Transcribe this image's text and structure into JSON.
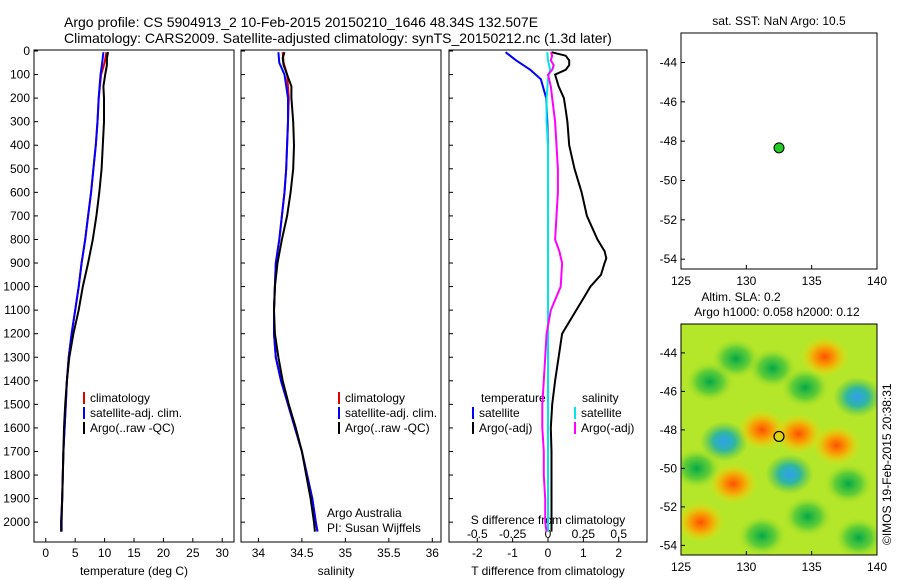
{
  "header": {
    "line1": "Argo profile: CS 5904913_2 10-Feb-2015 20150210_1646 48.34S 132.507E",
    "line2": "Climatology: CARS2009. Satellite-adjusted climatology: synTS_20150212.nc (1.3d later)"
  },
  "credits": {
    "org": "Argo Australia",
    "pi": "PI: Susan Wijffels",
    "stamp": "©IMOS 19-Feb-2015 20:38:31"
  },
  "colors": {
    "climatology": "#e00000",
    "satellite": "#0000ff",
    "argo": "#000000",
    "sal_satellite": "#00e5e5",
    "sal_argo": "#ff00ff",
    "marker": "#22cc22"
  },
  "chart_data": [
    {
      "type": "line",
      "name": "temperature-profile",
      "xlabel": "temperature (deg C)",
      "ylabel": "",
      "xlim": [
        -2,
        32
      ],
      "ylim": [
        2080,
        0
      ],
      "xticks": [
        0,
        5,
        10,
        15,
        20,
        25,
        30
      ],
      "yticks": [
        0,
        100,
        200,
        300,
        400,
        500,
        600,
        700,
        800,
        900,
        1000,
        1100,
        1200,
        1300,
        1400,
        1500,
        1600,
        1700,
        1800,
        1900,
        2000
      ],
      "legend": [
        "climatology",
        "satellite-adj. clim.",
        "Argo(..raw -QC)"
      ],
      "series": [
        {
          "name": "climatology",
          "depth": [
            5,
            50,
            100,
            200,
            300,
            400,
            500,
            600,
            700,
            800,
            900,
            1000,
            1100,
            1200,
            1300,
            1400,
            1500,
            1600,
            1700,
            1800,
            1900,
            2000,
            2040
          ],
          "values": [
            10.3,
            10.0,
            9.4,
            9.0,
            8.8,
            8.5,
            8.1,
            7.7,
            7.2,
            6.7,
            6.1,
            5.6,
            5.0,
            4.4,
            3.9,
            3.6,
            3.4,
            3.2,
            3.0,
            2.9,
            2.8,
            2.6,
            2.6
          ]
        },
        {
          "name": "satellite-adj. clim.",
          "depth": [
            5,
            50,
            100,
            200,
            300,
            400,
            500,
            600,
            700,
            800,
            900,
            1000,
            1100,
            1200,
            1300,
            1400,
            1500,
            1600,
            1700,
            1800,
            1900,
            2000,
            2040
          ],
          "values": [
            9.8,
            9.6,
            9.3,
            9.0,
            8.8,
            8.5,
            8.1,
            7.7,
            7.2,
            6.7,
            6.1,
            5.6,
            5.0,
            4.4,
            3.9,
            3.6,
            3.4,
            3.2,
            3.0,
            2.9,
            2.8,
            2.6,
            2.6
          ]
        },
        {
          "name": "Argo(..raw -QC)",
          "depth": [
            5,
            30,
            60,
            100,
            150,
            200,
            300,
            400,
            500,
            600,
            700,
            800,
            900,
            1000,
            1100,
            1200,
            1300,
            1400,
            1500,
            1600,
            1700,
            1800,
            1900,
            2000,
            2040
          ],
          "values": [
            10.6,
            10.4,
            10.4,
            10.1,
            9.8,
            9.9,
            9.9,
            9.7,
            9.5,
            9.1,
            8.6,
            8.0,
            7.2,
            6.3,
            5.6,
            4.7,
            4.0,
            3.6,
            3.3,
            3.1,
            3.0,
            2.9,
            2.8,
            2.7,
            2.7
          ]
        }
      ]
    },
    {
      "type": "line",
      "name": "salinity-profile",
      "xlabel": "salinity",
      "xlim": [
        33.8,
        36.1
      ],
      "ylim": [
        2080,
        0
      ],
      "xticks": [
        34,
        34.5,
        35,
        35.5,
        36
      ],
      "legend": [
        "climatology",
        "satellite-adj. clim.",
        "Argo(..raw -QC)"
      ],
      "series": [
        {
          "name": "climatology",
          "depth": [
            5,
            50,
            100,
            200,
            300,
            400,
            500,
            600,
            700,
            800,
            900,
            1000,
            1100,
            1200,
            1300,
            1400,
            1500,
            1600,
            1700,
            1800,
            1900,
            2000,
            2040
          ],
          "values": [
            34.28,
            34.29,
            34.33,
            34.35,
            34.34,
            34.33,
            34.32,
            34.3,
            34.27,
            34.24,
            34.2,
            34.19,
            34.18,
            34.18,
            34.2,
            34.26,
            34.34,
            34.42,
            34.5,
            34.56,
            34.62,
            34.66,
            34.68
          ]
        },
        {
          "name": "satellite-adj. clim.",
          "depth": [
            5,
            50,
            100,
            200,
            300,
            400,
            500,
            600,
            700,
            800,
            900,
            1000,
            1100,
            1200,
            1300,
            1400,
            1500,
            1600,
            1700,
            1800,
            1900,
            2000,
            2040
          ],
          "values": [
            34.23,
            34.24,
            34.3,
            34.34,
            34.34,
            34.33,
            34.32,
            34.3,
            34.27,
            34.24,
            34.2,
            34.19,
            34.18,
            34.18,
            34.2,
            34.26,
            34.34,
            34.42,
            34.5,
            34.56,
            34.62,
            34.66,
            34.68
          ]
        },
        {
          "name": "Argo(..raw -QC)",
          "depth": [
            5,
            30,
            60,
            100,
            150,
            200,
            300,
            400,
            500,
            600,
            700,
            800,
            900,
            1000,
            1100,
            1200,
            1300,
            1400,
            1500,
            1600,
            1700,
            1800,
            1900,
            2000,
            2040
          ],
          "values": [
            34.3,
            34.28,
            34.29,
            34.33,
            34.38,
            34.38,
            34.4,
            34.41,
            34.4,
            34.37,
            34.33,
            34.27,
            34.22,
            34.19,
            34.18,
            34.19,
            34.23,
            34.28,
            34.35,
            34.43,
            34.5,
            34.55,
            34.6,
            34.64,
            34.65
          ]
        }
      ]
    },
    {
      "type": "line",
      "name": "difference-profile",
      "xlabel": "T difference from climatology",
      "xlabel2": "S difference from climatology",
      "xlim": [
        -2.8,
        2.8
      ],
      "ylim": [
        2080,
        0
      ],
      "xticks": [
        -2,
        -1,
        0,
        1,
        2
      ],
      "s_ticks": [
        -0.5,
        -0.25,
        0,
        0.25,
        0.5
      ],
      "legend_temp_title": "temperature",
      "legend_sal_title": "salinity",
      "legend": [
        "satellite",
        "Argo(-adj)",
        "satellite",
        "Argo(-adj)"
      ],
      "series": [
        {
          "name": "temperature satellite",
          "depth": [
            5,
            40,
            80,
            120,
            200,
            300,
            400,
            500,
            600,
            700,
            800,
            900,
            1000,
            1100,
            1200,
            1400,
            1600,
            1800,
            2000,
            2040
          ],
          "values": [
            -1.2,
            -0.9,
            -0.5,
            -0.2,
            -0.05,
            -0.02,
            0,
            0,
            0,
            0,
            0,
            0,
            0,
            0,
            0,
            0,
            0,
            0,
            0,
            0
          ]
        },
        {
          "name": "temperature Argo(-adj)",
          "depth": [
            5,
            20,
            40,
            60,
            80,
            100,
            150,
            200,
            250,
            300,
            400,
            500,
            600,
            700,
            750,
            800,
            850,
            880,
            900,
            950,
            1000,
            1050,
            1100,
            1150,
            1200,
            1300,
            1400,
            1500,
            1600,
            1700,
            1800,
            1900,
            2000,
            2040
          ],
          "values": [
            0.1,
            0.5,
            0.6,
            0.6,
            0.5,
            0.2,
            0.3,
            0.45,
            0.5,
            0.55,
            0.6,
            0.75,
            0.95,
            1.1,
            1.25,
            1.4,
            1.6,
            1.65,
            1.6,
            1.5,
            1.2,
            1.0,
            0.8,
            0.6,
            0.4,
            0.3,
            0.2,
            0.12,
            0.08,
            0.1,
            0.1,
            0.1,
            0.1,
            0.1
          ]
        },
        {
          "name": "salinity satellite",
          "depth": [
            5,
            40,
            80,
            120,
            200,
            300,
            400,
            500,
            600,
            700,
            800,
            900,
            1000,
            1100,
            1200,
            1400,
            1600,
            1800,
            2000,
            2040
          ],
          "values": [
            -0.005,
            0,
            0.015,
            0,
            -0.01,
            -0.01,
            0,
            0,
            0,
            0,
            0,
            0,
            0,
            0,
            0,
            0,
            0,
            0,
            0,
            0
          ]
        },
        {
          "name": "salinity Argo(-adj)",
          "depth": [
            5,
            20,
            40,
            60,
            80,
            100,
            150,
            200,
            300,
            400,
            500,
            600,
            700,
            800,
            850,
            900,
            1000,
            1100,
            1200,
            1300,
            1400,
            1500,
            1600,
            1700,
            1800,
            1900,
            2000,
            2040
          ],
          "values": [
            0.02,
            0.03,
            0.02,
            0.04,
            0.03,
            0.0,
            0.02,
            0.03,
            0.05,
            0.06,
            0.07,
            0.07,
            0.06,
            0.05,
            0.08,
            0.1,
            0.09,
            0.02,
            -0.01,
            -0.02,
            -0.03,
            -0.04,
            -0.04,
            -0.03,
            -0.03,
            -0.02,
            -0.02,
            -0.01
          ]
        }
      ]
    },
    {
      "type": "scatter",
      "name": "sst-map",
      "title": "sat. SST: NaN Argo: 10.5",
      "xlim": [
        125,
        140
      ],
      "ylim": [
        -54.5,
        -42.5
      ],
      "xticks": [
        125,
        130,
        135,
        140
      ],
      "yticks": [
        -44,
        -46,
        -48,
        -50,
        -52,
        -54
      ],
      "x": [
        132.5
      ],
      "y": [
        -48.34
      ]
    },
    {
      "type": "heatmap",
      "name": "sla-map",
      "title": "Altim. SLA: 0.2",
      "title2": "Argo h1000: 0.058 h2000: 0.12",
      "xlim": [
        125,
        140
      ],
      "ylim": [
        -54.5,
        -42.5
      ],
      "xticks": [
        125,
        130,
        135,
        140
      ],
      "yticks": [
        -44,
        -46,
        -48,
        -50,
        -52,
        -54
      ],
      "x": [
        132.5
      ],
      "y": [
        -48.34
      ],
      "blobs": [
        {
          "lon": 127.2,
          "lat": -45.5,
          "kind": "green"
        },
        {
          "lon": 129.2,
          "lat": -44.3,
          "kind": "green"
        },
        {
          "lon": 132.0,
          "lat": -44.8,
          "kind": "green"
        },
        {
          "lon": 134.5,
          "lat": -45.8,
          "kind": "green"
        },
        {
          "lon": 138.5,
          "lat": -46.3,
          "kind": "blue"
        },
        {
          "lon": 128.3,
          "lat": -48.6,
          "kind": "blue"
        },
        {
          "lon": 131.2,
          "lat": -48.0,
          "kind": "orange"
        },
        {
          "lon": 134.0,
          "lat": -48.2,
          "kind": "orange"
        },
        {
          "lon": 136.9,
          "lat": -48.8,
          "kind": "orange"
        },
        {
          "lon": 133.3,
          "lat": -50.3,
          "kind": "blue"
        },
        {
          "lon": 137.8,
          "lat": -50.8,
          "kind": "green"
        },
        {
          "lon": 129.0,
          "lat": -50.8,
          "kind": "orange"
        },
        {
          "lon": 126.5,
          "lat": -52.8,
          "kind": "orange"
        },
        {
          "lon": 134.7,
          "lat": -52.5,
          "kind": "green"
        },
        {
          "lon": 131.2,
          "lat": -53.5,
          "kind": "green"
        },
        {
          "lon": 138.6,
          "lat": -53.6,
          "kind": "green"
        },
        {
          "lon": 126.2,
          "lat": -50.0,
          "kind": "green"
        },
        {
          "lon": 136.0,
          "lat": -44.2,
          "kind": "orange"
        }
      ]
    }
  ]
}
